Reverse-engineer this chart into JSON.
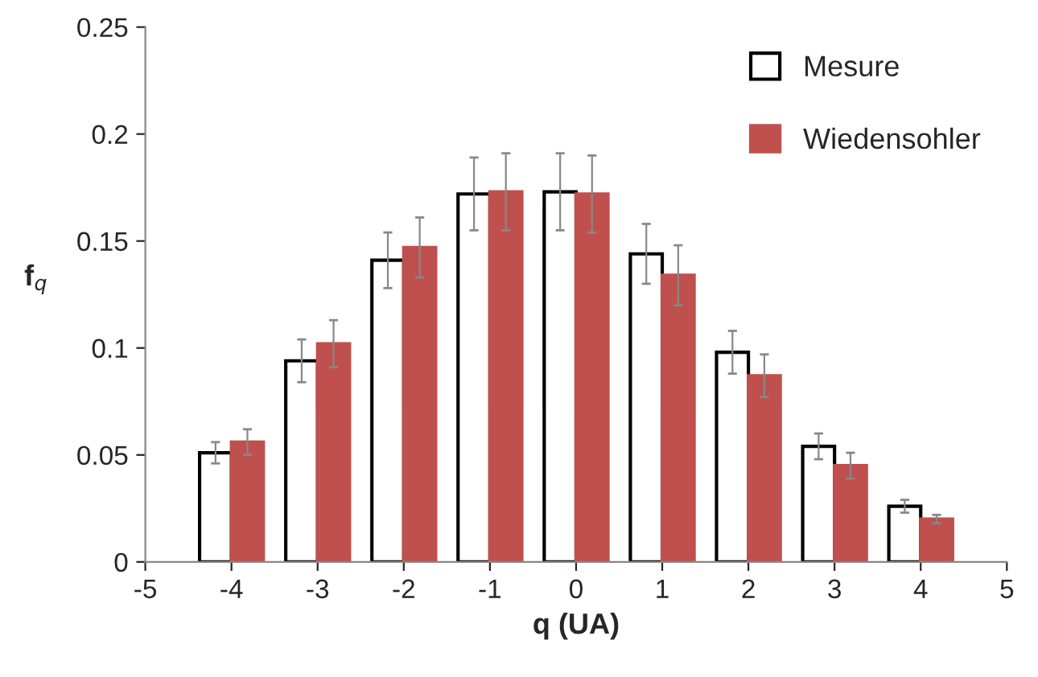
{
  "chart_data": {
    "type": "bar",
    "xlabel": "q (UA)",
    "ylabel": "f$_{q}$",
    "x": [
      -4,
      -3,
      -2,
      -1,
      0,
      1,
      2,
      3,
      4
    ],
    "series": [
      {
        "name": "Mesure",
        "color": "#ffffff",
        "values": [
          0.051,
          0.094,
          0.141,
          0.172,
          0.173,
          0.144,
          0.098,
          0.054,
          0.026
        ],
        "errors": [
          0.005,
          0.01,
          0.013,
          0.017,
          0.018,
          0.014,
          0.01,
          0.006,
          0.003
        ]
      },
      {
        "name": "Wiedensohler",
        "color": "#c0504d",
        "values": [
          0.056,
          0.102,
          0.147,
          0.173,
          0.172,
          0.134,
          0.087,
          0.045,
          0.02
        ],
        "errors": [
          0.006,
          0.011,
          0.014,
          0.018,
          0.018,
          0.014,
          0.01,
          0.006,
          0.002
        ]
      }
    ],
    "xlim": [
      -5,
      5
    ],
    "xticks": [
      -5,
      -4,
      -3,
      -2,
      -1,
      0,
      1,
      2,
      3,
      4,
      5
    ],
    "ylim": [
      0,
      0.25
    ],
    "yticks": [
      0,
      0.05,
      0.1,
      0.15,
      0.2,
      0.25
    ],
    "grid": false,
    "legend": "top right"
  }
}
